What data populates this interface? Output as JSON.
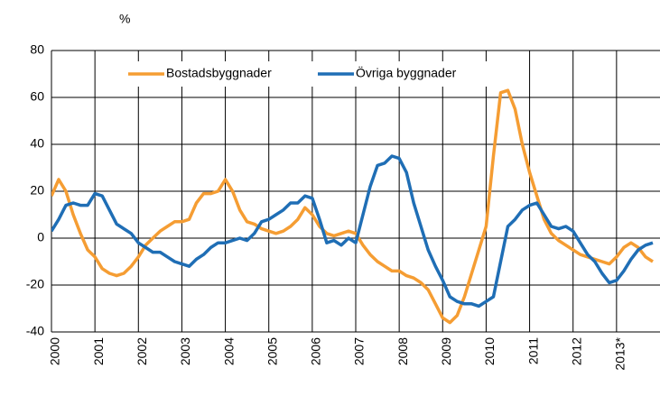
{
  "chart_data": {
    "type": "line",
    "y_label": "%",
    "categories": [
      "2000",
      null,
      null,
      null,
      null,
      null,
      "2001",
      null,
      null,
      null,
      null,
      null,
      "2002",
      null,
      null,
      null,
      null,
      null,
      "2003",
      null,
      null,
      null,
      null,
      null,
      "2004",
      null,
      null,
      null,
      null,
      null,
      "2005",
      null,
      null,
      null,
      null,
      null,
      "2006",
      null,
      null,
      null,
      null,
      null,
      "2007",
      null,
      null,
      null,
      null,
      null,
      "2008",
      null,
      null,
      null,
      null,
      null,
      "2009",
      null,
      null,
      null,
      null,
      null,
      "2010",
      null,
      null,
      null,
      null,
      null,
      "2011",
      null,
      null,
      null,
      null,
      null,
      "2012",
      null,
      null,
      null,
      null,
      null,
      "2013*",
      null,
      null,
      null,
      null,
      null
    ],
    "series": [
      {
        "name": "Bostadsbyggnader",
        "color": "#f59d33",
        "values": [
          18,
          25,
          20,
          10,
          2,
          -5,
          -8,
          -13,
          -15,
          -16,
          -15,
          -12,
          -8,
          -3,
          0,
          3,
          5,
          7,
          7,
          8,
          15,
          19,
          19,
          20,
          25,
          20,
          12,
          7,
          6,
          4,
          3,
          2,
          3,
          5,
          8,
          13,
          10,
          5,
          2,
          1,
          2,
          3,
          2,
          -3,
          -7,
          -10,
          -12,
          -14,
          -14,
          -16,
          -17,
          -19,
          -22,
          -28,
          -34,
          -36,
          -33,
          -25,
          -15,
          -5,
          5,
          35,
          62,
          63,
          55,
          40,
          28,
          18,
          8,
          2,
          -1,
          -3,
          -5,
          -7,
          -8,
          -9,
          -10,
          -11,
          -8,
          -4,
          -2,
          -4,
          -8,
          -10
        ]
      },
      {
        "name": "Övriga byggnader",
        "color": "#1f6eb5",
        "values": [
          3,
          8,
          14,
          15,
          14,
          14,
          19,
          18,
          12,
          6,
          4,
          2,
          -2,
          -4,
          -6,
          -6,
          -8,
          -10,
          -11,
          -12,
          -9,
          -7,
          -4,
          -2,
          -2,
          -1,
          0,
          -1,
          2,
          7,
          8,
          10,
          12,
          15,
          15,
          18,
          17,
          8,
          -2,
          -1,
          -3,
          0,
          -2,
          10,
          22,
          31,
          32,
          35,
          34,
          28,
          15,
          5,
          -5,
          -12,
          -18,
          -25,
          -27,
          -28,
          -28,
          -29,
          -27,
          -25,
          -10,
          5,
          8,
          12,
          14,
          15,
          10,
          5,
          4,
          5,
          3,
          -2,
          -7,
          -10,
          -15,
          -19,
          -18,
          -14,
          -9,
          -5,
          -3,
          -2
        ]
      }
    ],
    "ylim": [
      -40,
      80
    ],
    "yticks": [
      -40,
      -20,
      0,
      20,
      40,
      60,
      80
    ],
    "grid": true,
    "legend": "top"
  }
}
